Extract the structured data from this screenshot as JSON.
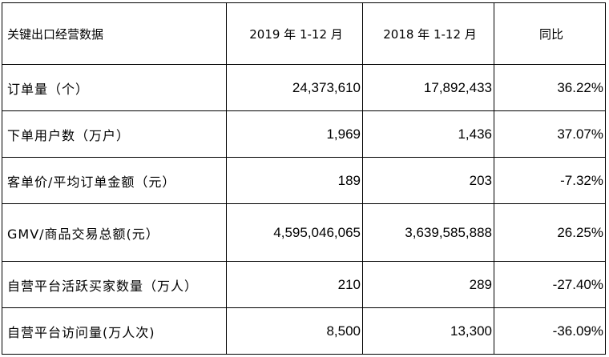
{
  "table": {
    "headers": [
      "关键出口经营数据",
      "2019 年 1-12 月",
      "2018 年 1-12 月",
      "同比"
    ],
    "rows": [
      {
        "label": "订单量（个）",
        "y2019": "24,373,610",
        "y2018": "17,892,433",
        "yoy": "36.22%"
      },
      {
        "label": "下单用户数（万户）",
        "y2019": "1,969",
        "y2018": "1,436",
        "yoy": "37.07%"
      },
      {
        "label": "客单价/平均订单金额（元）",
        "y2019": "189",
        "y2018": "203",
        "yoy": "-7.32%"
      },
      {
        "label": "GMV/商品交易总额(元）",
        "y2019": "4,595,046,065",
        "y2018": "3,639,585,888",
        "yoy": "26.25%"
      },
      {
        "label": "自营平台活跃买家数量（万人）",
        "y2019": "210",
        "y2018": "289",
        "yoy": "-27.40%"
      },
      {
        "label": "自营平台访问量(万人次)",
        "y2019": "8,500",
        "y2018": "13,300",
        "yoy": "-36.09%"
      }
    ]
  }
}
